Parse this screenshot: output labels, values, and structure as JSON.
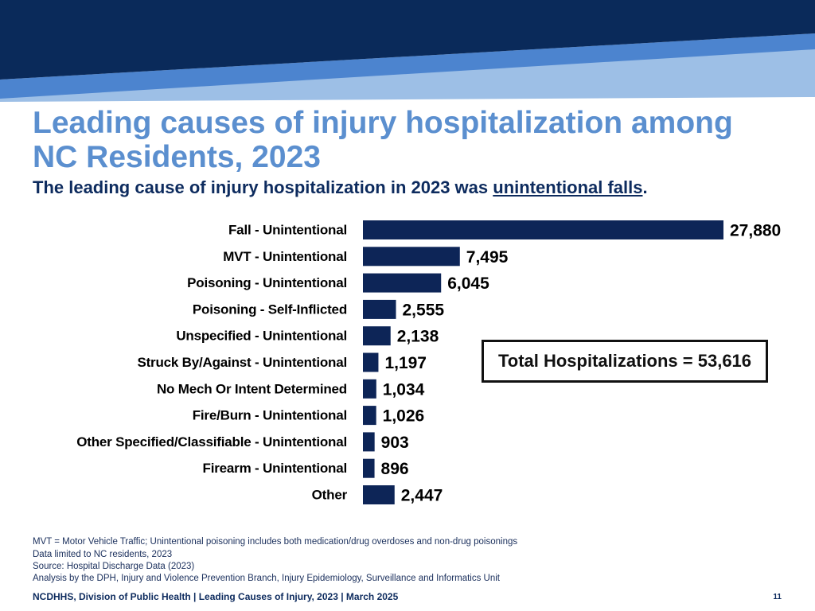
{
  "header": {
    "title_line1": "Leading causes of injury hospitalization among",
    "title_line2": "NC Residents, 2023",
    "subtitle_before": "The leading cause of injury hospitalization in 2023 was ",
    "subtitle_emphasis": "unintentional falls",
    "subtitle_after": "."
  },
  "colors": {
    "bar": "#0d2557",
    "banner_dark": "#0a2a5a",
    "banner_mid": "#4c84cf",
    "banner_light": "#9dbfe6",
    "title": "#5b8fcf",
    "subtitle": "#0d2b5e"
  },
  "chart_data": {
    "type": "bar",
    "orientation": "horizontal",
    "categories": [
      "Fall - Unintentional",
      "MVT - Unintentional",
      "Poisoning - Unintentional",
      "Poisoning - Self-Inflicted",
      "Unspecified - Unintentional",
      "Struck By/Against - Unintentional",
      "No Mech Or Intent Determined",
      "Fire/Burn - Unintentional",
      "Other Specified/Classifiable - Unintentional",
      "Firearm - Unintentional",
      "Other"
    ],
    "values": [
      27880,
      7495,
      6045,
      2555,
      2138,
      1197,
      1034,
      1026,
      903,
      896,
      2447
    ],
    "value_labels": [
      "27,880",
      "7,495",
      "6,045",
      "2,555",
      "2,138",
      "1,197",
      "1,034",
      "1,026",
      "903",
      "896",
      "2,447"
    ],
    "xlim": [
      0,
      27880
    ],
    "title": "",
    "xlabel": "",
    "ylabel": "",
    "grid": false
  },
  "annotation": {
    "total_text": "Total Hospitalizations = 53,616"
  },
  "notes": [
    "MVT = Motor Vehicle Traffic; Unintentional poisoning includes both medication/drug overdoses and non-drug poisonings",
    "Data limited to NC residents, 2023",
    "Source: Hospital Discharge Data (2023)",
    "Analysis by the DPH, Injury and Violence Prevention Branch, Injury Epidemiology, Surveillance and Informatics Unit"
  ],
  "footer": {
    "text": "NCDHHS, Division of Public Health | Leading Causes of Injury, 2023 | March 2025",
    "page_number": "11"
  }
}
